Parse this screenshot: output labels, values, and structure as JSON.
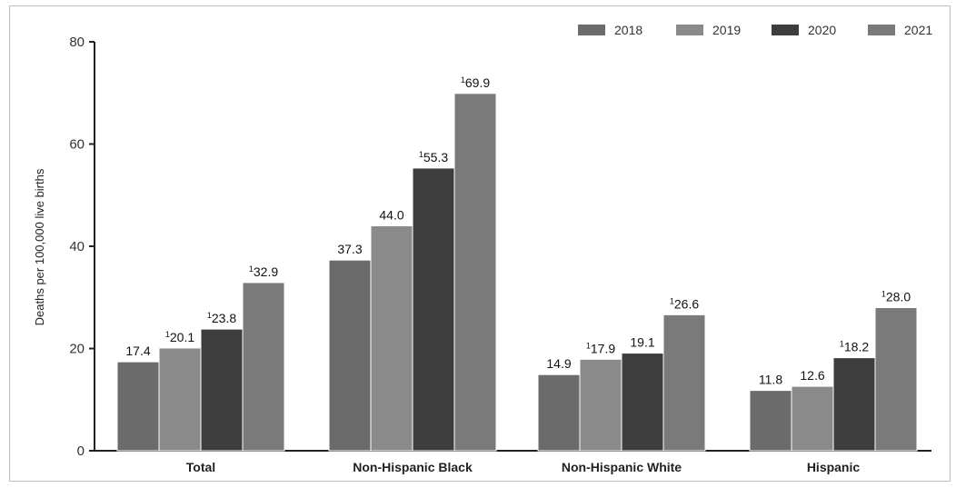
{
  "chart_data": {
    "type": "bar",
    "title": "",
    "xlabel": "",
    "ylabel": "Deaths per 100,000 live births",
    "ylim": [
      0,
      80
    ],
    "yticks": [
      "0",
      "20",
      "40",
      "60",
      "80"
    ],
    "grid": false,
    "legend_position": "top-right",
    "categories": [
      "Total",
      "Non-Hispanic Black",
      "Non-Hispanic White",
      "Hispanic"
    ],
    "series": [
      {
        "name": "2018",
        "color": "#6b6b6b",
        "values": [
          17.4,
          37.3,
          14.9,
          11.8
        ],
        "labels": [
          "17.4",
          "37.3",
          "14.9",
          "11.8"
        ],
        "footnote": [
          false,
          false,
          false,
          false
        ]
      },
      {
        "name": "2019",
        "color": "#8a8a8a",
        "values": [
          20.1,
          44.0,
          17.9,
          12.6
        ],
        "labels": [
          "20.1",
          "44.0",
          "17.9",
          "12.6"
        ],
        "footnote": [
          true,
          false,
          true,
          false
        ]
      },
      {
        "name": "2020",
        "color": "#3d3d3d",
        "values": [
          23.8,
          55.3,
          19.1,
          18.2
        ],
        "labels": [
          "23.8",
          "55.3",
          "19.1",
          "18.2"
        ],
        "footnote": [
          true,
          true,
          false,
          true
        ]
      },
      {
        "name": "2021",
        "color": "#7a7a7a",
        "values": [
          32.9,
          69.9,
          26.6,
          28.0
        ],
        "labels": [
          "32.9",
          "69.9",
          "26.6",
          "28.0"
        ],
        "footnote": [
          true,
          true,
          true,
          true
        ]
      }
    ],
    "footnote_marker": "1"
  }
}
